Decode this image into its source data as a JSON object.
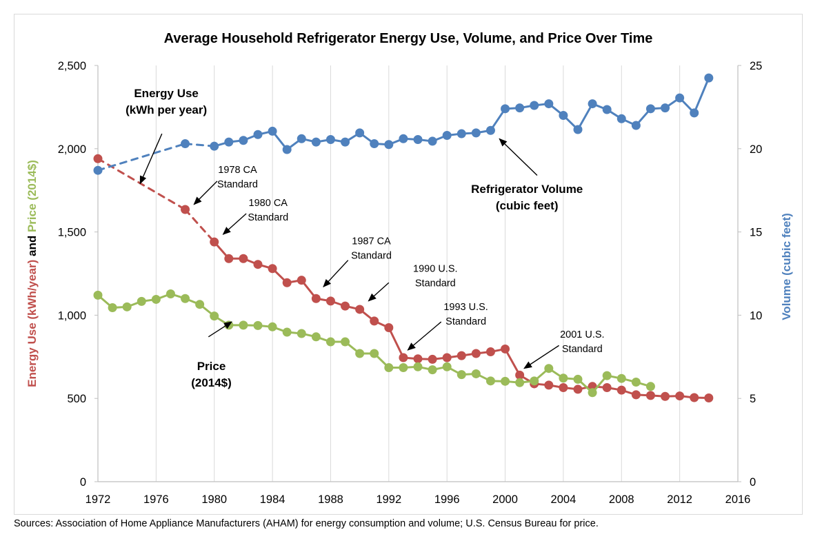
{
  "chart_data": {
    "type": "line",
    "title": "Average Household Refrigerator Energy Use, Volume, and Price Over Time",
    "ylabel_left_parts": [
      {
        "text": "Energy Use (kWh/year)",
        "color": "#c0504d"
      },
      {
        "text": " and ",
        "color": "#000000"
      },
      {
        "text": "Price (2014$)",
        "color": "#9bbb59"
      }
    ],
    "ylabel_right": "Volume (cubic feet)",
    "ylabel_right_color": "#4f81bd",
    "xlim": [
      1972,
      2016
    ],
    "xticks": [
      1972,
      1976,
      1980,
      1984,
      1988,
      1992,
      1996,
      2000,
      2004,
      2008,
      2012,
      2016
    ],
    "ylim_left": [
      0,
      2500
    ],
    "yticks_left": [
      {
        "value": 0,
        "label": "0"
      },
      {
        "value": 500,
        "label": "500"
      },
      {
        "value": 1000,
        "label": "1,000"
      },
      {
        "value": 1500,
        "label": "1,500"
      },
      {
        "value": 2000,
        "label": "2,000"
      },
      {
        "value": 2500,
        "label": "2,500"
      }
    ],
    "ylim_right": [
      0,
      25
    ],
    "yticks_right": [
      {
        "value": 0,
        "label": "0"
      },
      {
        "value": 5,
        "label": "5"
      },
      {
        "value": 10,
        "label": "10"
      },
      {
        "value": 15,
        "label": "15"
      },
      {
        "value": 20,
        "label": "20"
      },
      {
        "value": 25,
        "label": "25"
      }
    ],
    "grid": "vertical",
    "series": [
      {
        "key": "energy",
        "axis": "left",
        "color": "#c0504d",
        "dashed_segments": [
          [
            1972,
            1978
          ],
          [
            1978,
            1980
          ]
        ],
        "points": [
          [
            1972,
            1940
          ],
          [
            1978,
            1635
          ],
          [
            1980,
            1440
          ],
          [
            1981,
            1340
          ],
          [
            1982,
            1340
          ],
          [
            1983,
            1305
          ],
          [
            1984,
            1280
          ],
          [
            1985,
            1195
          ],
          [
            1986,
            1210
          ],
          [
            1987,
            1100
          ],
          [
            1988,
            1085
          ],
          [
            1989,
            1055
          ],
          [
            1990,
            1035
          ],
          [
            1991,
            965
          ],
          [
            1992,
            925
          ],
          [
            1993,
            745
          ],
          [
            1994,
            738
          ],
          [
            1995,
            735
          ],
          [
            1996,
            745
          ],
          [
            1997,
            757
          ],
          [
            1998,
            770
          ],
          [
            1999,
            780
          ],
          [
            2000,
            797
          ],
          [
            2001,
            640
          ],
          [
            2002,
            588
          ],
          [
            2003,
            580
          ],
          [
            2004,
            565
          ],
          [
            2005,
            555
          ],
          [
            2006,
            572
          ],
          [
            2007,
            565
          ],
          [
            2008,
            550
          ],
          [
            2009,
            522
          ],
          [
            2010,
            518
          ],
          [
            2011,
            512
          ],
          [
            2012,
            515
          ],
          [
            2013,
            505
          ],
          [
            2014,
            503
          ]
        ]
      },
      {
        "key": "price",
        "axis": "left",
        "color": "#9bbb59",
        "dashed_segments": [],
        "points": [
          [
            1972,
            1120
          ],
          [
            1973,
            1045
          ],
          [
            1974,
            1050
          ],
          [
            1975,
            1083
          ],
          [
            1976,
            1095
          ],
          [
            1977,
            1128
          ],
          [
            1978,
            1100
          ],
          [
            1979,
            1065
          ],
          [
            1980,
            995
          ],
          [
            1981,
            940
          ],
          [
            1982,
            940
          ],
          [
            1983,
            938
          ],
          [
            1984,
            930
          ],
          [
            1985,
            898
          ],
          [
            1986,
            890
          ],
          [
            1987,
            870
          ],
          [
            1988,
            840
          ],
          [
            1989,
            840
          ],
          [
            1990,
            770
          ],
          [
            1991,
            770
          ],
          [
            1992,
            685
          ],
          [
            1993,
            685
          ],
          [
            1994,
            690
          ],
          [
            1995,
            672
          ],
          [
            1996,
            690
          ],
          [
            1997,
            643
          ],
          [
            1998,
            648
          ],
          [
            1999,
            605
          ],
          [
            2000,
            603
          ],
          [
            2001,
            595
          ],
          [
            2002,
            605
          ],
          [
            2003,
            680
          ],
          [
            2004,
            622
          ],
          [
            2005,
            615
          ],
          [
            2006,
            535
          ],
          [
            2007,
            637
          ],
          [
            2008,
            620
          ],
          [
            2009,
            598
          ],
          [
            2010,
            572
          ]
        ]
      },
      {
        "key": "volume",
        "axis": "right",
        "color": "#4f81bd",
        "dashed_segments": [
          [
            1972,
            1978
          ],
          [
            1978,
            1980
          ]
        ],
        "points": [
          [
            1972,
            18.7
          ],
          [
            1978,
            20.3
          ],
          [
            1980,
            20.15
          ],
          [
            1981,
            20.4
          ],
          [
            1982,
            20.5
          ],
          [
            1983,
            20.85
          ],
          [
            1984,
            21.05
          ],
          [
            1985,
            19.95
          ],
          [
            1986,
            20.6
          ],
          [
            1987,
            20.4
          ],
          [
            1988,
            20.55
          ],
          [
            1989,
            20.4
          ],
          [
            1990,
            20.95
          ],
          [
            1991,
            20.3
          ],
          [
            1992,
            20.25
          ],
          [
            1993,
            20.6
          ],
          [
            1994,
            20.55
          ],
          [
            1995,
            20.45
          ],
          [
            1996,
            20.8
          ],
          [
            1997,
            20.9
          ],
          [
            1998,
            20.95
          ],
          [
            1999,
            21.1
          ],
          [
            2000,
            22.4
          ],
          [
            2001,
            22.45
          ],
          [
            2002,
            22.6
          ],
          [
            2003,
            22.7
          ],
          [
            2004,
            22.0
          ],
          [
            2005,
            21.15
          ],
          [
            2006,
            22.7
          ],
          [
            2007,
            22.35
          ],
          [
            2008,
            21.8
          ],
          [
            2009,
            21.4
          ],
          [
            2010,
            22.4
          ],
          [
            2011,
            22.45
          ],
          [
            2012,
            23.05
          ],
          [
            2013,
            22.15
          ],
          [
            2014,
            24.25
          ]
        ]
      }
    ],
    "annotations": [
      {
        "key": "energy-use",
        "lines": [
          "Energy Use",
          "(kWh per year)"
        ],
        "bold": true,
        "text_at": [
          1976.7,
          2310
        ],
        "arrow_from": [
          1976.4,
          2090
        ],
        "arrow_to": [
          1974.9,
          1790
        ]
      },
      {
        "key": "1978-ca",
        "lines": [
          "1978 CA",
          "Standard"
        ],
        "bold": false,
        "text_at": [
          1981.6,
          1855
        ],
        "arrow_from": [
          1980.2,
          1805
        ],
        "arrow_to": [
          1978.6,
          1665
        ]
      },
      {
        "key": "1980-ca",
        "lines": [
          "1980 CA",
          "Standard"
        ],
        "bold": false,
        "text_at": [
          1983.7,
          1655
        ],
        "arrow_from": [
          1982.2,
          1610
        ],
        "arrow_to": [
          1980.6,
          1485
        ]
      },
      {
        "key": "1987-ca",
        "lines": [
          "1987 CA",
          "Standard"
        ],
        "bold": false,
        "text_at": [
          1990.8,
          1425
        ],
        "arrow_from": [
          1989.2,
          1330
        ],
        "arrow_to": [
          1987.5,
          1170
        ]
      },
      {
        "key": "1990-us",
        "lines": [
          "1990 U.S.",
          "Standard"
        ],
        "bold": false,
        "text_at": [
          1995.2,
          1260
        ],
        "arrow_from": [
          1992.0,
          1195
        ],
        "arrow_to": [
          1990.6,
          1085
        ]
      },
      {
        "key": "1993-us",
        "lines": [
          "1993 U.S.",
          "Standard"
        ],
        "bold": false,
        "text_at": [
          1997.3,
          1030
        ],
        "arrow_from": [
          1995.6,
          960
        ],
        "arrow_to": [
          1993.3,
          790
        ]
      },
      {
        "key": "2001-us",
        "lines": [
          "2001 U.S.",
          "Standard"
        ],
        "bold": false,
        "text_at": [
          2005.3,
          865
        ],
        "arrow_from": [
          2003.7,
          818
        ],
        "arrow_to": [
          2001.3,
          680
        ]
      },
      {
        "key": "volume",
        "lines": [
          "Refrigerator Volume",
          "(cubic feet)"
        ],
        "bold": true,
        "text_at": [
          2001.5,
          1735
        ],
        "arrow_from": [
          2002.2,
          1840
        ],
        "arrow_to": [
          1999.6,
          2060
        ]
      },
      {
        "key": "price",
        "lines": [
          "Price",
          "(2014$)"
        ],
        "bold": true,
        "text_at": [
          1979.8,
          670
        ],
        "arrow_from": [
          1979.6,
          870
        ],
        "arrow_to": [
          1981.2,
          960
        ]
      }
    ]
  },
  "source_note": "Sources: Association of Home Appliance Manufacturers (AHAM) for energy consumption and volume; U.S. Census Bureau for price."
}
